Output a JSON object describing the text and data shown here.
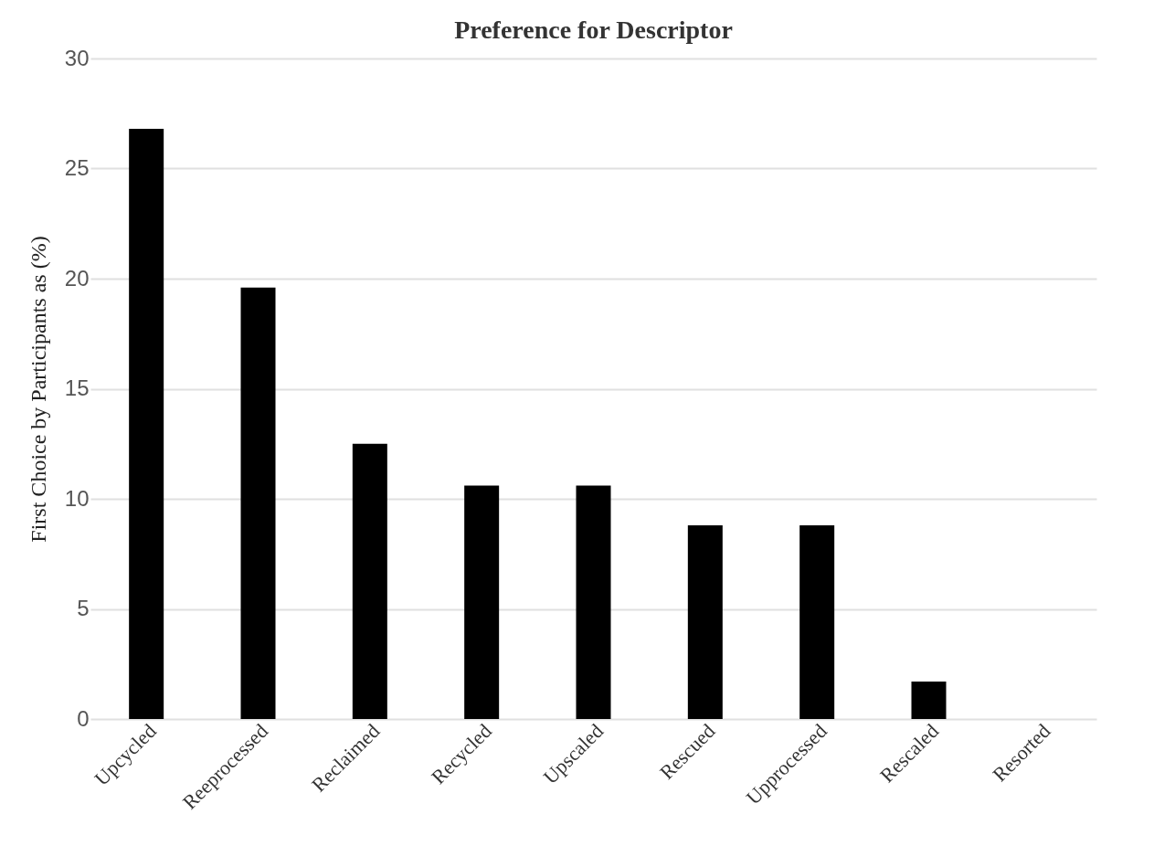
{
  "chart_data": {
    "type": "bar",
    "title": "Preference for Descriptor",
    "ylabel": "First Choice by Participants as (%)",
    "categories": [
      "Upcycled",
      "Reeprocessed",
      "Reclaimed",
      "Recycled",
      "Upscaled",
      "Rescued",
      "Upprocessed",
      "Rescaled",
      "Resorted"
    ],
    "values": [
      26.8,
      19.6,
      12.5,
      10.6,
      10.6,
      8.8,
      8.8,
      1.7,
      0
    ],
    "color": "#000000",
    "ylim": [
      0,
      30
    ],
    "yticks": [
      0,
      5,
      10,
      15,
      20,
      25,
      30
    ],
    "grid": "y"
  }
}
